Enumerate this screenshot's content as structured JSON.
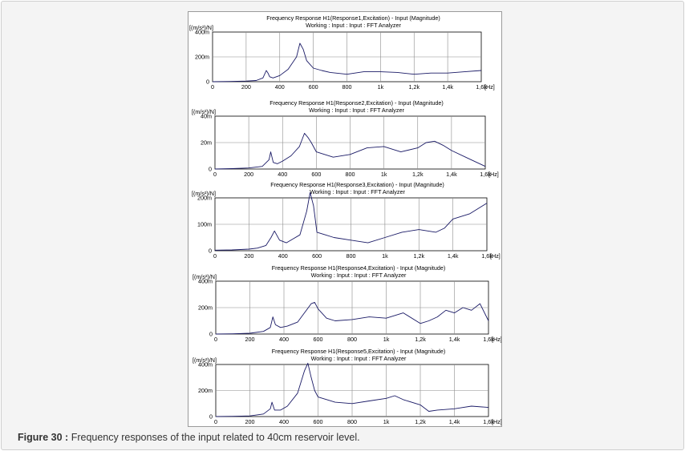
{
  "caption": {
    "label": "Figure 30 :",
    "text": "Frequency responses of the input related to 40cm reservoir level."
  },
  "colors": {
    "trace": "#1a1a66",
    "grid": "#8c8c8c",
    "frame": "#e9e9e9"
  },
  "chart_data": [
    {
      "type": "line",
      "title": "Frequency Response H1(Response1,Excitation) - Input (Magnitude)",
      "subtitle": "Working : Input : Input : FFT Analyzer",
      "ylabel": "[(m/s²)/N]",
      "xunit": "[Hz]",
      "xlim": [
        0,
        1600
      ],
      "ylim": [
        0,
        0.4
      ],
      "xticks": [
        0,
        200,
        400,
        600,
        800,
        1000,
        1200,
        1400,
        1600
      ],
      "xtick_labels": [
        "0",
        "200",
        "400",
        "600",
        "800",
        "1k",
        "1,2k",
        "1,4k",
        "1,6k"
      ],
      "yticks": [
        0,
        0.2,
        0.4
      ],
      "ytick_labels": [
        "0",
        "200m",
        "400m"
      ],
      "x": [
        0,
        100,
        200,
        260,
        300,
        320,
        330,
        340,
        360,
        400,
        450,
        500,
        520,
        540,
        560,
        580,
        600,
        650,
        700,
        800,
        900,
        1000,
        1100,
        1200,
        1300,
        1400,
        1500,
        1600
      ],
      "y": [
        0,
        0.002,
        0.005,
        0.01,
        0.03,
        0.09,
        0.07,
        0.04,
        0.03,
        0.05,
        0.1,
        0.2,
        0.31,
        0.26,
        0.17,
        0.14,
        0.11,
        0.09,
        0.075,
        0.06,
        0.08,
        0.08,
        0.075,
        0.06,
        0.07,
        0.07,
        0.08,
        0.09
      ]
    },
    {
      "type": "line",
      "title": "Frequency Response H1(Response2,Excitation) - Input (Magnitude)",
      "subtitle": "Working : Input : Input : FFT Analyzer",
      "ylabel": "[(m/s²)/N]",
      "xunit": "[Hz]",
      "xlim": [
        0,
        1600
      ],
      "ylim": [
        0,
        0.04
      ],
      "xticks": [
        0,
        200,
        400,
        600,
        800,
        1000,
        1200,
        1400,
        1600
      ],
      "xtick_labels": [
        "0",
        "200",
        "400",
        "600",
        "800",
        "1k",
        "1,2k",
        "1,4k",
        "1,6k"
      ],
      "yticks": [
        0,
        0.02,
        0.04
      ],
      "ytick_labels": [
        "0",
        "20m",
        "40m"
      ],
      "x": [
        0,
        100,
        200,
        280,
        320,
        330,
        345,
        370,
        400,
        450,
        500,
        530,
        550,
        570,
        600,
        700,
        800,
        900,
        1000,
        1100,
        1200,
        1250,
        1300,
        1350,
        1400,
        1500,
        1600
      ],
      "y": [
        0,
        0.0003,
        0.0008,
        0.002,
        0.007,
        0.013,
        0.005,
        0.004,
        0.006,
        0.01,
        0.017,
        0.027,
        0.024,
        0.02,
        0.013,
        0.009,
        0.011,
        0.016,
        0.017,
        0.013,
        0.016,
        0.02,
        0.021,
        0.018,
        0.014,
        0.008,
        0.002
      ]
    },
    {
      "type": "line",
      "title": "Frequency Response H1(Response3,Excitation) - Input (Magnitude)",
      "subtitle": "Working : Input : Input : FFT Analyzer",
      "ylabel": "[(m/s²)/N]",
      "xunit": "[Hz]",
      "xlim": [
        0,
        1600
      ],
      "ylim": [
        0,
        0.2
      ],
      "xticks": [
        0,
        200,
        400,
        600,
        800,
        1000,
        1200,
        1400,
        1600
      ],
      "xtick_labels": [
        "0",
        "200",
        "400",
        "600",
        "800",
        "1k",
        "1,2k",
        "1,4k",
        "1,6k"
      ],
      "yticks": [
        0,
        0.1,
        0.2
      ],
      "ytick_labels": [
        "0",
        "100m",
        "200m"
      ],
      "x": [
        0,
        100,
        200,
        250,
        300,
        330,
        350,
        380,
        420,
        460,
        500,
        540,
        560,
        580,
        600,
        650,
        700,
        800,
        900,
        1000,
        1100,
        1200,
        1300,
        1350,
        1400,
        1500,
        1600
      ],
      "y": [
        0.002,
        0.003,
        0.006,
        0.01,
        0.02,
        0.05,
        0.075,
        0.04,
        0.03,
        0.045,
        0.06,
        0.15,
        0.22,
        0.17,
        0.07,
        0.06,
        0.05,
        0.04,
        0.03,
        0.05,
        0.07,
        0.08,
        0.07,
        0.085,
        0.12,
        0.14,
        0.18
      ]
    },
    {
      "type": "line",
      "title": "Frequency Response H1(Response4,Excitation) - Input (Magnitude)",
      "subtitle": "Working : Input : Input : FFT Analyzer",
      "ylabel": "[(m/s²)/N]",
      "xunit": "[Hz]",
      "xlim": [
        0,
        1600
      ],
      "ylim": [
        0,
        0.4
      ],
      "xticks": [
        0,
        200,
        400,
        600,
        800,
        1000,
        1200,
        1400,
        1600
      ],
      "xtick_labels": [
        "0",
        "200",
        "400",
        "600",
        "800",
        "1k",
        "1,2k",
        "1,4k",
        "1,6k"
      ],
      "yticks": [
        0,
        0.2,
        0.4
      ],
      "ytick_labels": [
        "0",
        "200m",
        "400m"
      ],
      "x": [
        0,
        100,
        200,
        280,
        320,
        335,
        350,
        380,
        420,
        480,
        520,
        560,
        580,
        600,
        650,
        700,
        800,
        900,
        1000,
        1100,
        1200,
        1250,
        1300,
        1350,
        1400,
        1450,
        1500,
        1550,
        1600
      ],
      "y": [
        0,
        0.002,
        0.006,
        0.02,
        0.05,
        0.13,
        0.07,
        0.05,
        0.06,
        0.09,
        0.16,
        0.23,
        0.24,
        0.19,
        0.12,
        0.1,
        0.11,
        0.13,
        0.12,
        0.16,
        0.08,
        0.1,
        0.13,
        0.18,
        0.16,
        0.2,
        0.18,
        0.23,
        0.1
      ]
    },
    {
      "type": "line",
      "title": "Frequency Response H1(Response5,Excitation) - Input (Magnitude)",
      "subtitle": "Working : Input : Input : FFT Analyzer",
      "ylabel": "[(m/s²)/N]",
      "xunit": "[Hz]",
      "xlim": [
        0,
        1600
      ],
      "ylim": [
        0,
        0.4
      ],
      "xticks": [
        0,
        200,
        400,
        600,
        800,
        1000,
        1200,
        1400,
        1600
      ],
      "xtick_labels": [
        "0",
        "200",
        "400",
        "600",
        "800",
        "1k",
        "1,2k",
        "1,4k",
        "1,6k"
      ],
      "yticks": [
        0,
        0.2,
        0.4
      ],
      "ytick_labels": [
        "0",
        "200m",
        "400m"
      ],
      "x": [
        0,
        100,
        200,
        280,
        320,
        330,
        345,
        380,
        420,
        480,
        520,
        540,
        560,
        580,
        600,
        700,
        800,
        900,
        1000,
        1050,
        1100,
        1200,
        1250,
        1300,
        1400,
        1500,
        1600
      ],
      "y": [
        0,
        0.002,
        0.005,
        0.02,
        0.06,
        0.11,
        0.05,
        0.05,
        0.08,
        0.18,
        0.35,
        0.41,
        0.3,
        0.2,
        0.15,
        0.11,
        0.1,
        0.12,
        0.14,
        0.16,
        0.13,
        0.09,
        0.04,
        0.05,
        0.06,
        0.08,
        0.07
      ]
    }
  ]
}
